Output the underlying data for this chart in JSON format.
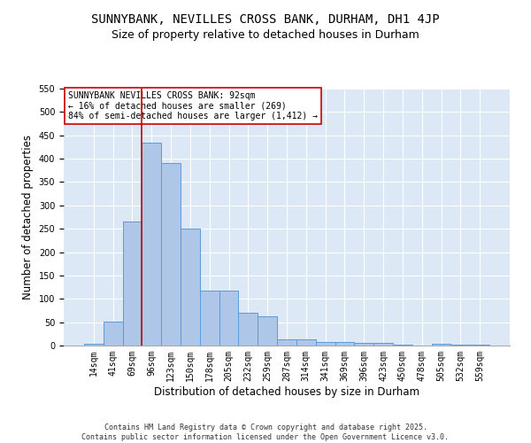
{
  "title1": "SUNNYBANK, NEVILLES CROSS BANK, DURHAM, DH1 4JP",
  "title2": "Size of property relative to detached houses in Durham",
  "xlabel": "Distribution of detached houses by size in Durham",
  "ylabel": "Number of detached properties",
  "categories": [
    "14sqm",
    "41sqm",
    "69sqm",
    "96sqm",
    "123sqm",
    "150sqm",
    "178sqm",
    "205sqm",
    "232sqm",
    "259sqm",
    "287sqm",
    "314sqm",
    "341sqm",
    "369sqm",
    "396sqm",
    "423sqm",
    "450sqm",
    "478sqm",
    "505sqm",
    "532sqm",
    "559sqm"
  ],
  "values": [
    3,
    52,
    265,
    435,
    390,
    250,
    117,
    117,
    70,
    62,
    13,
    13,
    8,
    7,
    6,
    5,
    1,
    0,
    3,
    1,
    2
  ],
  "bar_color": "#aec6e8",
  "bar_edge_color": "#5b9bd5",
  "vline_x_index": 3,
  "vline_color": "#cc0000",
  "annotation_text": "SUNNYBANK NEVILLES CROSS BANK: 92sqm\n← 16% of detached houses are smaller (269)\n84% of semi-detached houses are larger (1,412) →",
  "annotation_box_color": "#ffffff",
  "annotation_box_edge": "#cc0000",
  "ylim": [
    0,
    550
  ],
  "yticks": [
    0,
    50,
    100,
    150,
    200,
    250,
    300,
    350,
    400,
    450,
    500,
    550
  ],
  "background_color": "#dce8f5",
  "footer_text": "Contains HM Land Registry data © Crown copyright and database right 2025.\nContains public sector information licensed under the Open Government Licence v3.0.",
  "title_fontsize": 10,
  "subtitle_fontsize": 9,
  "tick_fontsize": 7,
  "label_fontsize": 8.5,
  "footer_fontsize": 6
}
